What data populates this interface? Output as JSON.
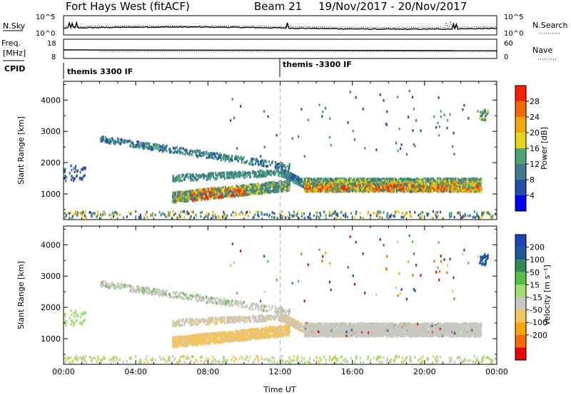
{
  "header": {
    "radar": "Fort Hays West (fitACF)",
    "beam": "Beam 21",
    "dates": "19/Nov/2017 - 20/Nov/2017"
  },
  "param_panels": {
    "nsky": {
      "label": "N.Sky",
      "right_label": "N.Search",
      "left_ticks": [
        "10^5",
        "10^0"
      ],
      "right_ticks": [
        "10^5",
        "10^0"
      ]
    },
    "freq": {
      "label": "Freq.",
      "unit": "[MHz]",
      "right_label": "Nave",
      "left_ticks": [
        "18",
        "8"
      ],
      "right_ticks": [
        "60",
        "0"
      ]
    },
    "cpid": {
      "label": "CPID",
      "segments": [
        "themis 3300 IF",
        "themis -3300 IF"
      ]
    }
  },
  "colors": {
    "frame": "#000000",
    "guide_line": "#c8c8c8",
    "power_scale": [
      "#0000ff",
      "#264ea8",
      "#3d7a8c",
      "#4aa574",
      "#e6d619",
      "#f5a800",
      "#f56a00",
      "#ff1e00"
    ],
    "velocity_scale": [
      "#ee0000",
      "#ff6a00",
      "#ffa500",
      "#f5c45a",
      "#c8c8c0",
      "#9fe06a",
      "#55c044",
      "#2e8b57",
      "#1a5a9a",
      "#1e3fbf"
    ]
  },
  "chart_data": [
    {
      "type": "heatmap",
      "panel": "power",
      "ylabel": "Slant Range [km]",
      "ylim": [
        180,
        4600
      ],
      "yticks": [
        "1000",
        "2000",
        "3000",
        "4000"
      ],
      "xlim": [
        0,
        24
      ],
      "colorbar_label": "Power [dB]",
      "colorbar_ticks": [
        "4",
        "8",
        "12",
        "16",
        "20",
        "24",
        "28"
      ],
      "colorbar_range": [
        0,
        30
      ],
      "guide_time": 12.0
    },
    {
      "type": "heatmap",
      "panel": "velocity",
      "ylabel": "Slant Range [km]",
      "ylim": [
        180,
        4600
      ],
      "yticks": [
        "1000",
        "2000",
        "3000",
        "4000"
      ],
      "xlim": [
        0,
        24
      ],
      "xticks": [
        "00:00",
        "04:00",
        "08:00",
        "12:00",
        "16:00",
        "20:00",
        "00:00"
      ],
      "xlabel": "Time UT",
      "colorbar_label": "Velocity [m s⁻¹]",
      "colorbar_ticks": [
        "200",
        "100",
        "50",
        "15",
        "-15",
        "-50",
        "-100",
        "-200"
      ],
      "colorbar_range": [
        -250,
        250
      ],
      "guide_time": 12.0
    }
  ]
}
